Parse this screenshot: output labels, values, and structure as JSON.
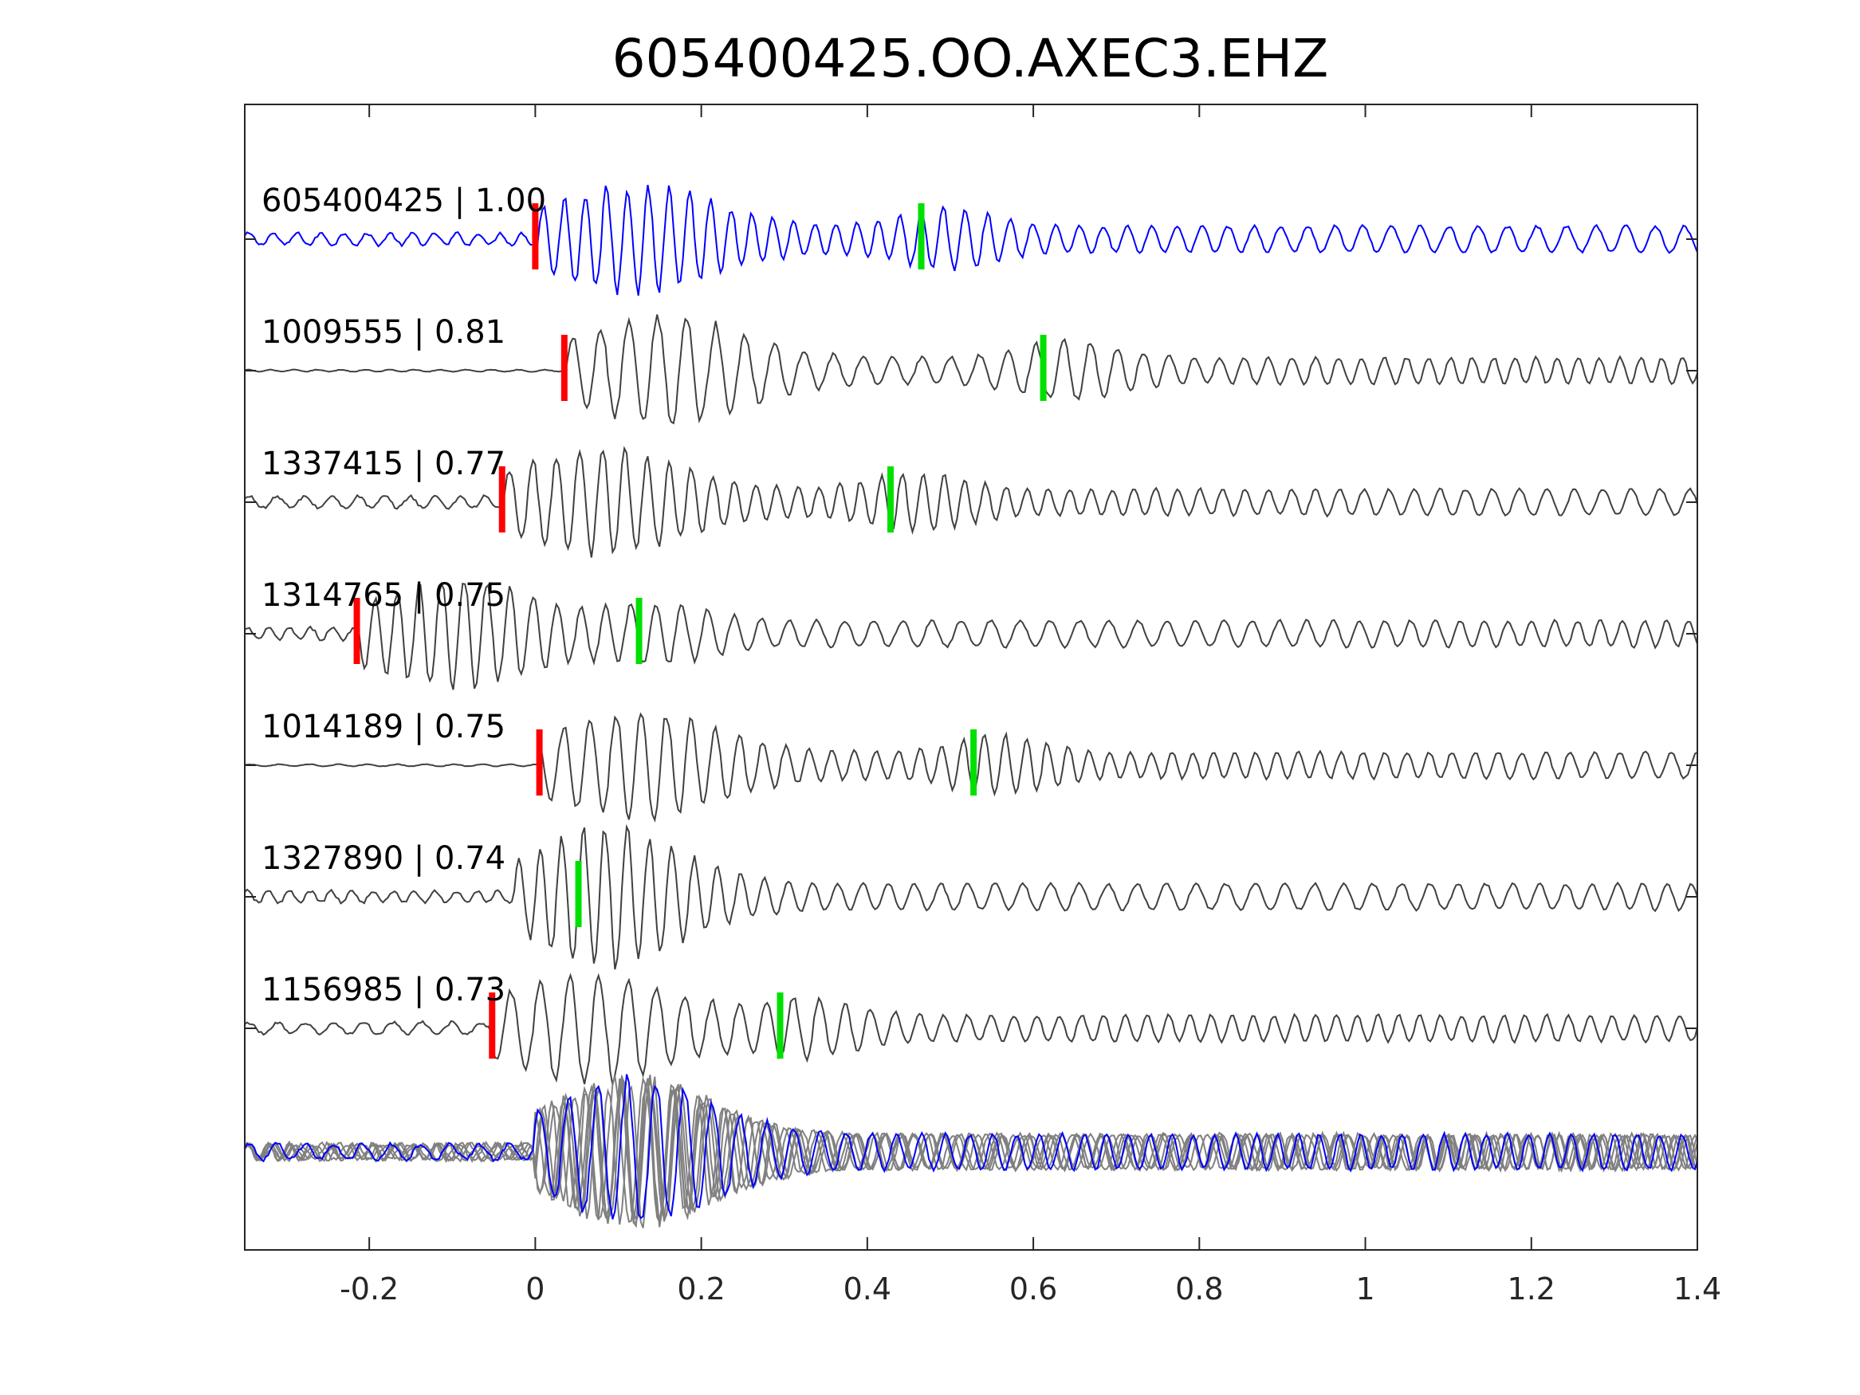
{
  "chart_data": {
    "type": "line",
    "title": "605400425.OO.AXEC3.EHZ",
    "xlabel": "",
    "ylabel": "",
    "xlim": [
      -0.35,
      1.4
    ],
    "x_ticks": [
      -0.2,
      0,
      0.2,
      0.4,
      0.6,
      0.8,
      1,
      1.2,
      1.4
    ],
    "x_tick_labels": [
      "-0.2",
      "0",
      "0.2",
      "0.4",
      "0.6",
      "0.8",
      "1",
      "1.2",
      "1.4"
    ],
    "grid": false,
    "colors": {
      "template_trace": "#0000ff",
      "match_trace": "#404040",
      "stack_trace": "#808080",
      "p_pick": "#ff0000",
      "s_pick": "#00e000",
      "axes": "#262626"
    },
    "series": [
      {
        "label": "605400425 | 1.00",
        "id": "605400425",
        "cc": 1.0,
        "color": "template",
        "p_pick": 0.0,
        "s_pick": 0.465
      },
      {
        "label": "1009555 | 0.81",
        "id": "1009555",
        "cc": 0.81,
        "color": "match",
        "p_pick": 0.035,
        "s_pick": 0.612
      },
      {
        "label": "1337415 | 0.77",
        "id": "1337415",
        "cc": 0.77,
        "color": "match",
        "p_pick": -0.04,
        "s_pick": 0.428
      },
      {
        "label": "1314765 | 0.75",
        "id": "1314765",
        "cc": 0.75,
        "color": "match",
        "p_pick": -0.215,
        "s_pick": 0.125
      },
      {
        "label": "1014189 | 0.75",
        "id": "1014189",
        "cc": 0.75,
        "color": "match",
        "p_pick": 0.005,
        "s_pick": 0.528
      },
      {
        "label": "1327890 | 0.74",
        "id": "1327890",
        "cc": 0.74,
        "color": "match",
        "p_pick": null,
        "s_pick": 0.052
      },
      {
        "label": "1156985 | 0.73",
        "id": "1156985",
        "cc": 0.73,
        "color": "match",
        "p_pick": -0.052,
        "s_pick": 0.295
      }
    ],
    "overlay": {
      "description_visible": false,
      "traces": 7
    }
  }
}
